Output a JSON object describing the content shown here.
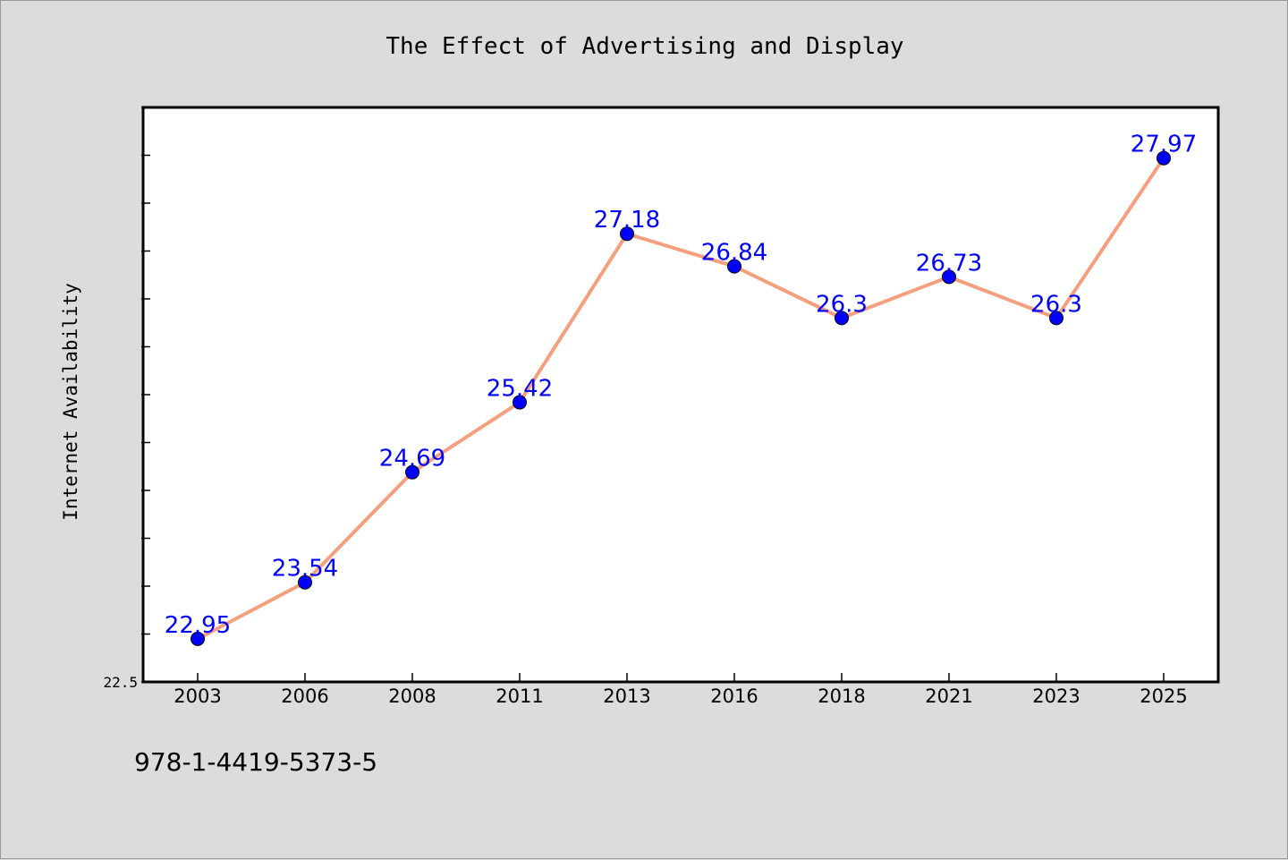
{
  "footer": {
    "isbn": "978-1-4419-5373-5"
  },
  "chart_data": {
    "type": "line",
    "title": "The Effect of Advertising and Display",
    "xlabel": "",
    "ylabel": "Internet Availability",
    "categories": [
      "2003",
      "2006",
      "2008",
      "2011",
      "2013",
      "2016",
      "2018",
      "2021",
      "2023",
      "2025"
    ],
    "series": [
      {
        "values": [
          22.95,
          23.54,
          24.69,
          25.42,
          27.18,
          26.84,
          26.3,
          26.73,
          26.3,
          27.97
        ],
        "data_labels": [
          "22.95",
          "23.54",
          "24.69",
          "25.42",
          "27.18",
          "26.84",
          "26.3",
          "26.73",
          "26.3",
          "27.97"
        ],
        "line_color": "#f4a07e",
        "marker_color": "#0000ff",
        "label_color": "#0000ff"
      }
    ],
    "ylim": [
      22.5,
      28.5
    ],
    "y_tick_labels": [
      "22.5"
    ],
    "grid": false,
    "legend": "none",
    "colors": {
      "background": "#dcdcdc",
      "plot_background": "#ffffff",
      "axis": "#000000"
    }
  }
}
